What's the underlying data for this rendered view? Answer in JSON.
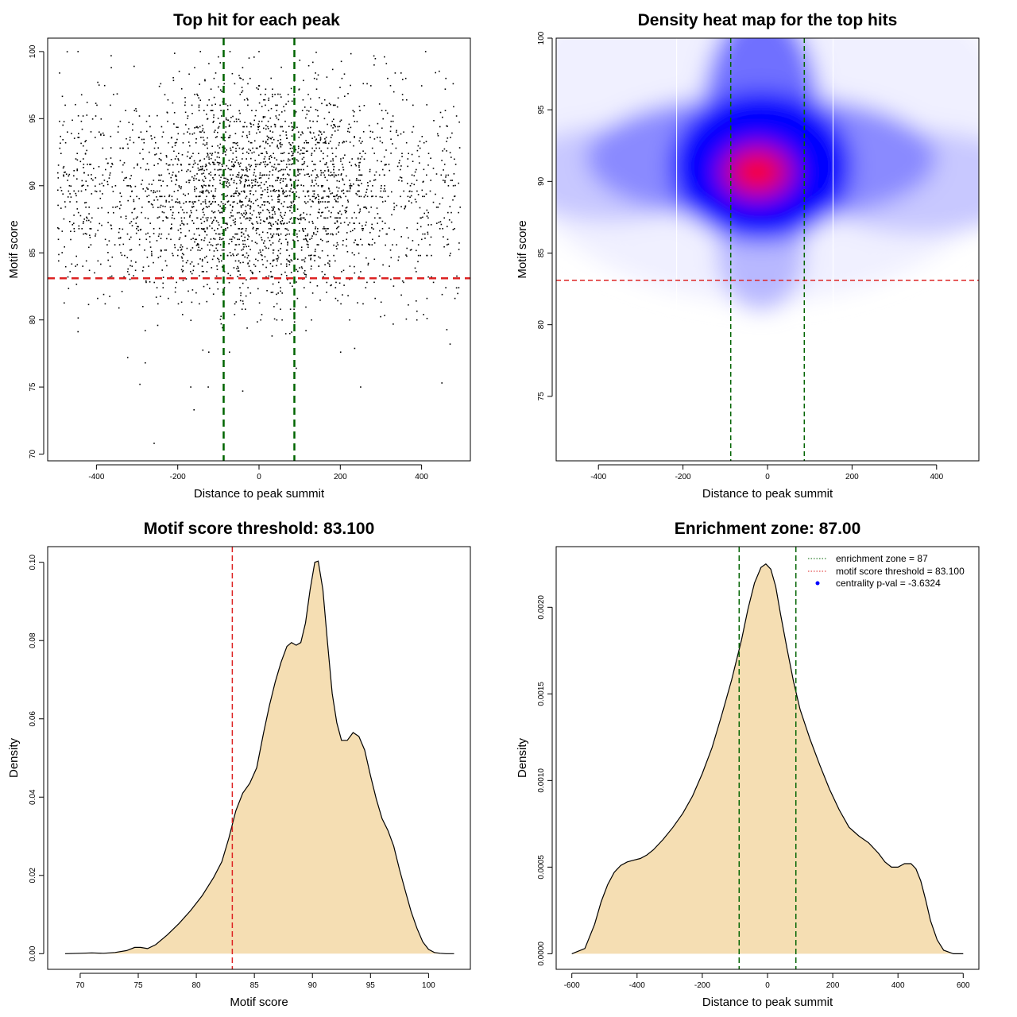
{
  "chart_data": [
    {
      "type": "scatter",
      "title": "Top hit for each peak",
      "xlabel": "Distance to peak summit",
      "ylabel": "Motif score",
      "xlim": [
        -520,
        520
      ],
      "ylim": [
        69.5,
        101
      ],
      "xticks": [
        -400,
        -200,
        0,
        200,
        400
      ],
      "yticks": [
        70,
        75,
        80,
        85,
        90,
        95,
        100
      ],
      "point_count": 3000,
      "point_color": "#000000",
      "hlines": [
        {
          "y": 83.1,
          "color": "#dd2222",
          "style": "dashed"
        }
      ],
      "vlines": [
        {
          "x": -87,
          "color": "#006400",
          "style": "dashed"
        },
        {
          "x": 87,
          "color": "#006400",
          "style": "dashed"
        }
      ],
      "sample_points": [
        [
          -258,
          70.8
        ],
        [
          -125,
          75.0
        ],
        [
          -168,
          75.0
        ],
        [
          -293,
          75.2
        ],
        [
          -160,
          73.3
        ],
        [
          250,
          75.0
        ],
        [
          -280,
          76.8
        ],
        [
          450,
          75.3
        ],
        [
          -40,
          74.7
        ],
        [
          0,
          100.0
        ],
        [
          410,
          100.0
        ],
        [
          -100,
          99.6
        ]
      ]
    },
    {
      "type": "heatmap",
      "title": "Density heat map for the top hits",
      "xlabel": "Distance to peak summit",
      "ylabel": "Motif score",
      "xlim": [
        -500,
        500
      ],
      "ylim": [
        70.5,
        100
      ],
      "xticks": [
        -400,
        -200,
        0,
        200,
        400
      ],
      "yticks": [
        75,
        80,
        85,
        90,
        95,
        100
      ],
      "color_scale": [
        "#ffffff",
        "#0000ff",
        "#ff0000"
      ],
      "peak": {
        "x": -15,
        "y": 90.5
      },
      "hlines": [
        {
          "y": 83.1,
          "color": "#dd2222",
          "style": "dashed"
        }
      ],
      "vlines": [
        {
          "x": -87,
          "color": "#006400",
          "style": "dashed"
        },
        {
          "x": 87,
          "color": "#006400",
          "style": "dashed"
        }
      ]
    },
    {
      "type": "area",
      "title": "Motif score threshold: 83.100",
      "xlabel": "Motif score",
      "ylabel": "Density",
      "xlim": [
        67.2,
        103.6
      ],
      "ylim": [
        -0.004,
        0.104
      ],
      "xticks": [
        70,
        75,
        80,
        85,
        90,
        95,
        100
      ],
      "yticks": [
        0.0,
        0.02,
        0.04,
        0.06,
        0.08,
        0.1
      ],
      "ytick_labels": [
        "0.00",
        "0.02",
        "0.04",
        "0.06",
        "0.08",
        "0.10"
      ],
      "fill": "#f5deb3",
      "vlines": [
        {
          "x": 83.1,
          "color": "#dd2222",
          "style": "dashed"
        }
      ],
      "x": [
        68.7,
        70.0,
        71.0,
        72.0,
        73.0,
        74.0,
        74.7,
        75.2,
        75.8,
        76.5,
        77.5,
        78.5,
        79.5,
        80.5,
        81.5,
        82.2,
        82.8,
        83.4,
        84.0,
        84.6,
        85.2,
        85.8,
        86.3,
        86.8,
        87.3,
        87.8,
        88.2,
        88.6,
        89.0,
        89.4,
        89.8,
        90.2,
        90.5,
        90.9,
        91.3,
        91.7,
        92.1,
        92.5,
        93.0,
        93.5,
        94.0,
        94.5,
        95.0,
        95.5,
        96.0,
        96.5,
        97.0,
        97.5,
        98.0,
        98.5,
        99.0,
        99.5,
        100.0,
        100.5,
        101.0,
        101.5,
        102.2
      ],
      "values": [
        0.0,
        0.0001,
        0.0002,
        0.0001,
        0.0003,
        0.0008,
        0.0016,
        0.0016,
        0.0013,
        0.0023,
        0.0048,
        0.0077,
        0.011,
        0.0148,
        0.0195,
        0.0235,
        0.0295,
        0.0365,
        0.041,
        0.0435,
        0.0475,
        0.0565,
        0.0635,
        0.0695,
        0.0745,
        0.0785,
        0.0795,
        0.0788,
        0.0795,
        0.0845,
        0.093,
        0.1,
        0.1003,
        0.093,
        0.0795,
        0.0665,
        0.059,
        0.0545,
        0.0545,
        0.0565,
        0.0555,
        0.052,
        0.0455,
        0.0395,
        0.0345,
        0.0315,
        0.0275,
        0.0215,
        0.016,
        0.0107,
        0.0065,
        0.003,
        0.0011,
        0.0003,
        0.0001,
        0.0,
        0.0
      ]
    },
    {
      "type": "area",
      "title": "Enrichment zone: 87.00",
      "xlabel": "Distance to peak summit",
      "ylabel": "Density",
      "xlim": [
        -648,
        648
      ],
      "ylim": [
        -9e-05,
        0.00235
      ],
      "xticks": [
        -600,
        -400,
        -200,
        0,
        200,
        400,
        600
      ],
      "yticks": [
        0.0,
        0.0005,
        0.001,
        0.0015,
        0.002
      ],
      "ytick_labels": [
        "0.0000",
        "0.0005",
        "0.0010",
        "0.0015",
        "0.0020"
      ],
      "fill": "#f5deb3",
      "vlines": [
        {
          "x": -87,
          "color": "#006400",
          "style": "dashed"
        },
        {
          "x": 87,
          "color": "#006400",
          "style": "dashed"
        }
      ],
      "x": [
        -600,
        -560,
        -530,
        -510,
        -490,
        -470,
        -450,
        -430,
        -410,
        -390,
        -370,
        -350,
        -320,
        -290,
        -260,
        -230,
        -200,
        -170,
        -140,
        -110,
        -80,
        -60,
        -40,
        -20,
        -5,
        10,
        25,
        40,
        60,
        80,
        100,
        130,
        160,
        190,
        220,
        250,
        280,
        310,
        340,
        360,
        380,
        400,
        420,
        440,
        455,
        470,
        485,
        500,
        520,
        540,
        570,
        600
      ],
      "values": [
        0.0,
        3e-05,
        0.00017,
        0.0003,
        0.0004,
        0.00047,
        0.00051,
        0.00053,
        0.00054,
        0.00055,
        0.00057,
        0.0006,
        0.00066,
        0.00073,
        0.00081,
        0.00091,
        0.00104,
        0.00119,
        0.00138,
        0.00158,
        0.00181,
        0.00199,
        0.00214,
        0.00223,
        0.00225,
        0.00222,
        0.00212,
        0.00196,
        0.00176,
        0.00157,
        0.00141,
        0.00124,
        0.00109,
        0.00095,
        0.00083,
        0.00073,
        0.00068,
        0.00064,
        0.00058,
        0.00053,
        0.0005,
        0.0005,
        0.00052,
        0.00052,
        0.00049,
        0.00042,
        0.00031,
        0.00019,
        8e-05,
        2e-05,
        0.0,
        0.0
      ],
      "legend": {
        "position": "top-right",
        "entries": [
          {
            "label": "enrichment zone = 87",
            "color": "#006400",
            "style": "dotted"
          },
          {
            "label": "motif score threshold = 83.100",
            "color": "#dd2222",
            "style": "dotted"
          },
          {
            "label": "centrality p-val = -3.6324",
            "color": "#0000ff",
            "style": "point"
          }
        ]
      }
    }
  ]
}
